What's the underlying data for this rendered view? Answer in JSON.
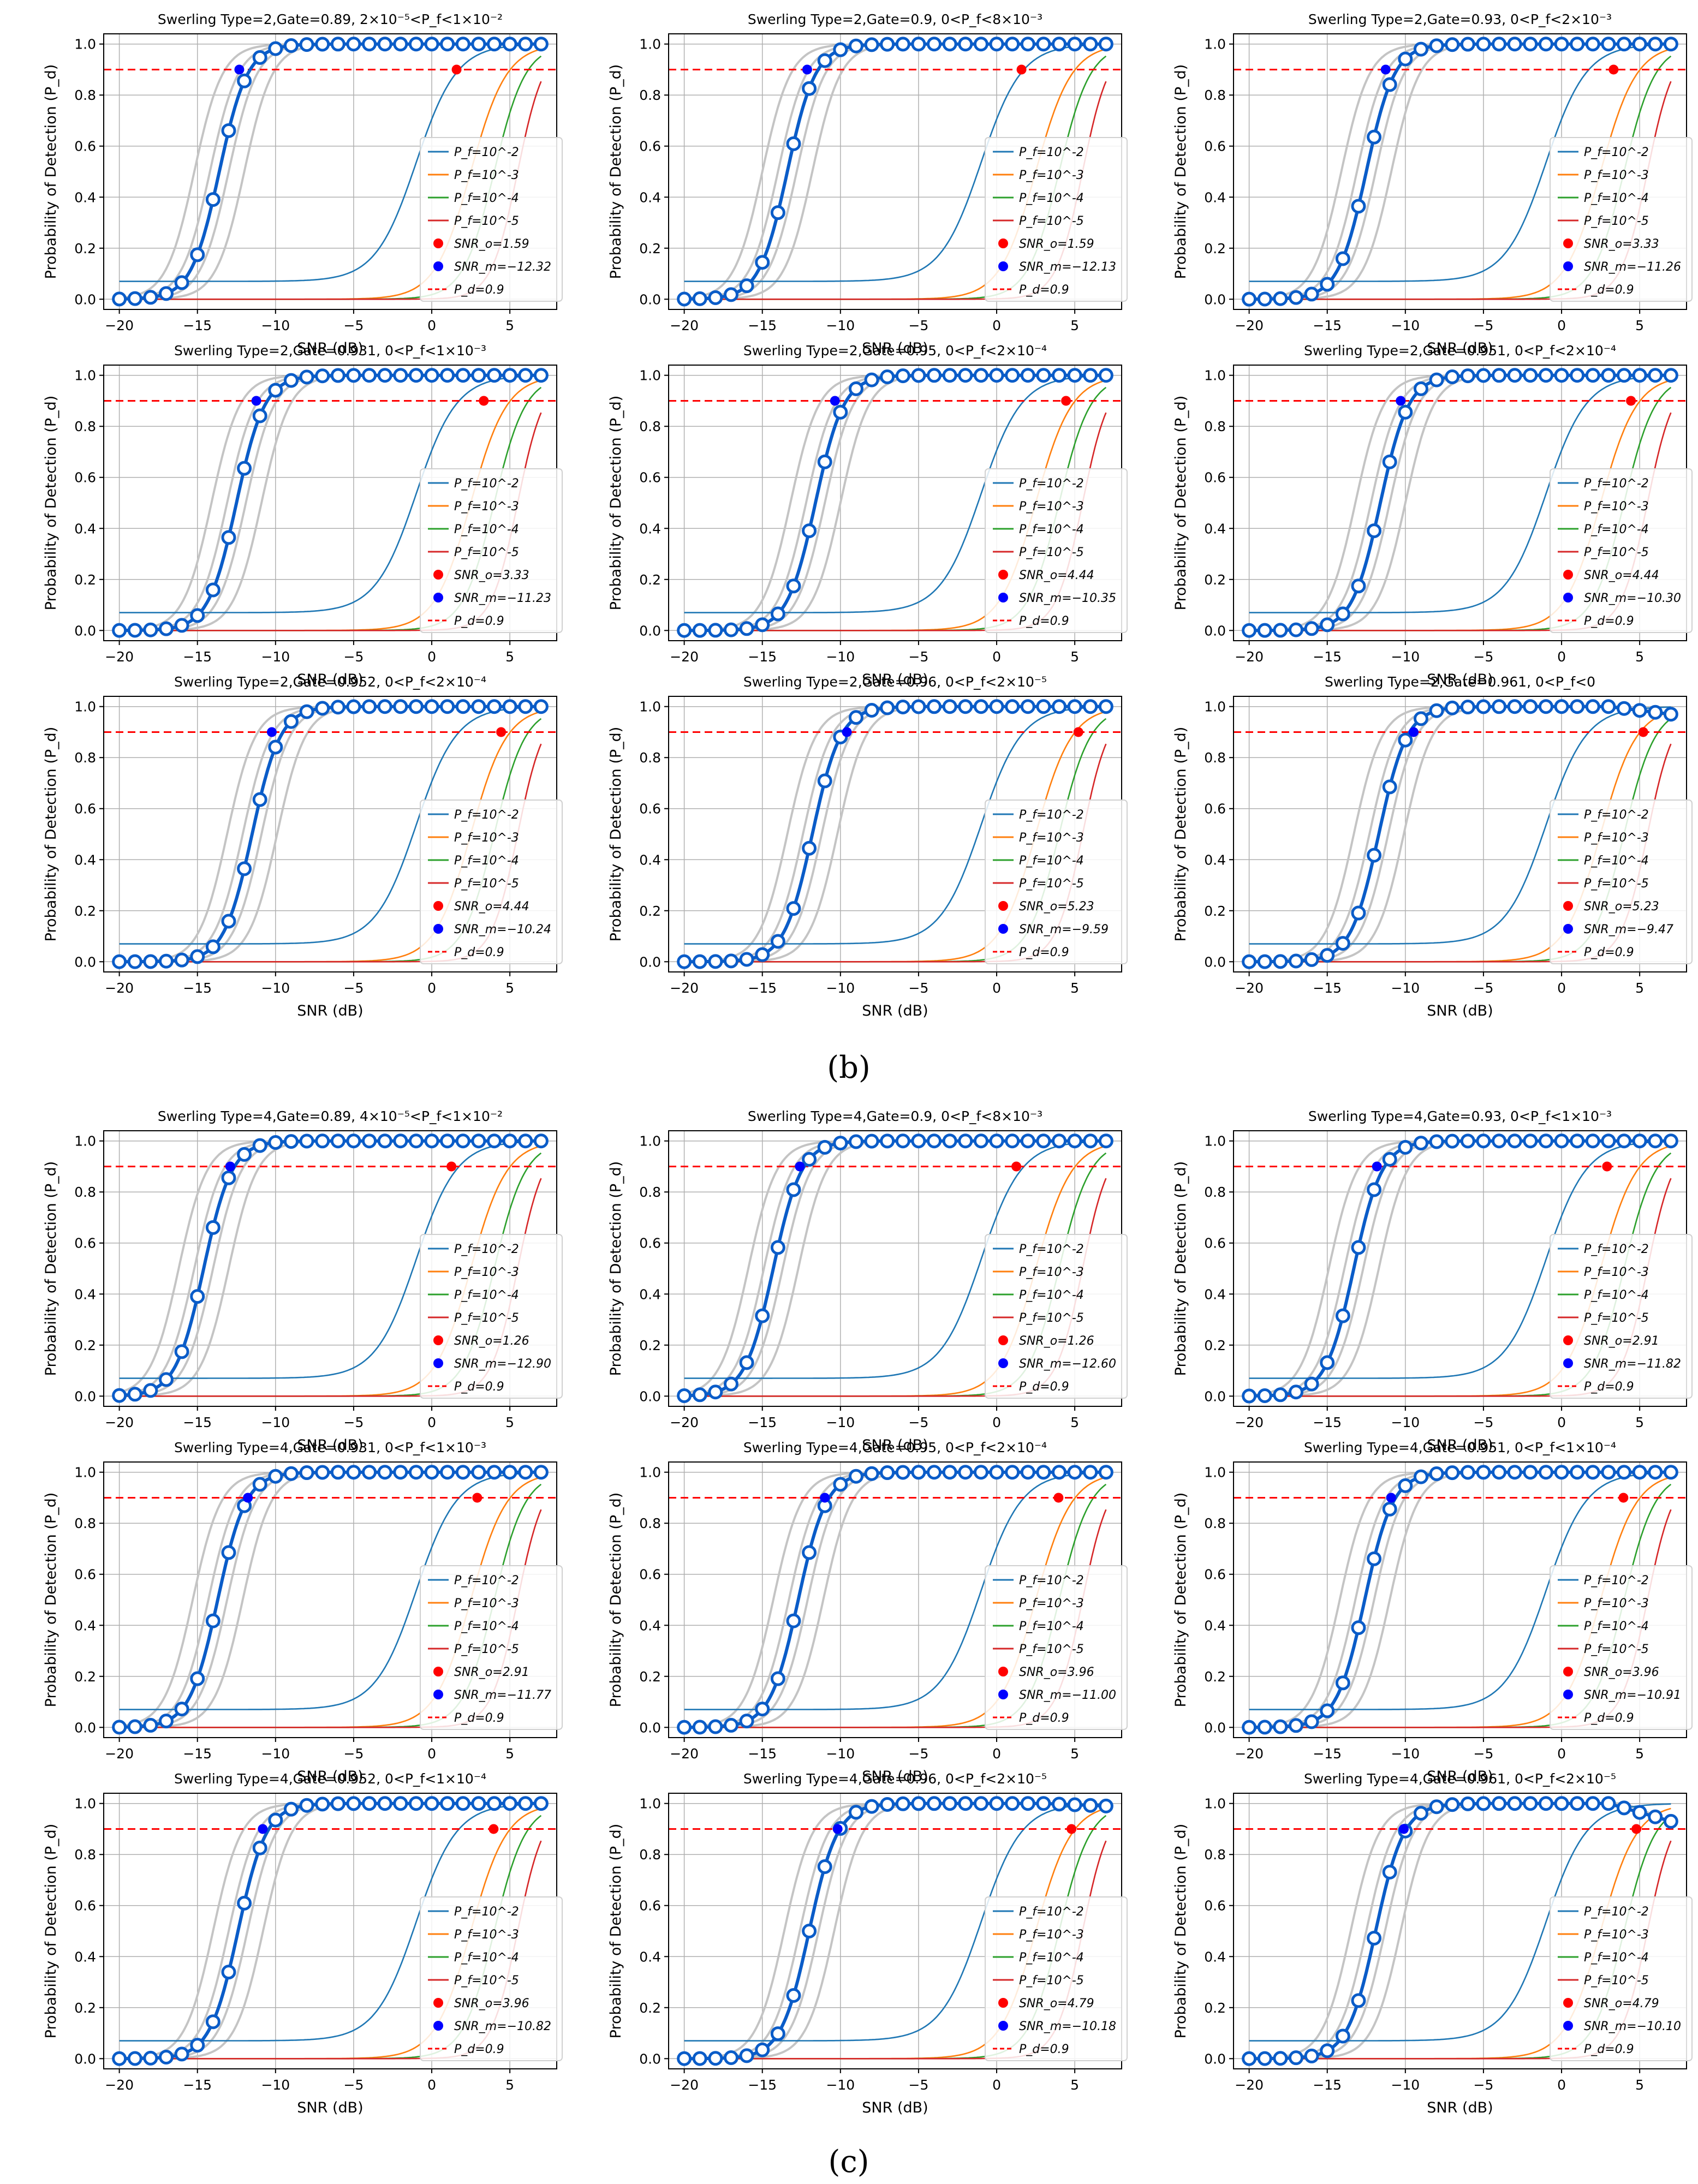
{
  "figure": {
    "captions": [
      "(b)",
      "(c)"
    ]
  },
  "colors": {
    "p1": "#1f77b4",
    "p2": "#ff7f0e",
    "p3": "#2ca02c",
    "p4": "#d62728",
    "ideal": "#c4c4c4",
    "measured": "#0a5cc8",
    "threshold": "#ff0000",
    "snr_o": "#ff0000",
    "snr_m": "#0000ff"
  },
  "common": {
    "xlabel": "SNR (dB)",
    "ylabel": "Probability of Detection (P_d)",
    "xlim": [
      -21,
      8
    ],
    "ylim": [
      -0.04,
      1.04
    ],
    "xticks": [
      -20,
      -15,
      -10,
      -5,
      0,
      5
    ],
    "yticks": [
      0.0,
      0.2,
      0.4,
      0.6,
      0.8,
      1.0
    ],
    "ytick_labels": [
      "0.0",
      "0.2",
      "0.4",
      "0.6",
      "0.8",
      "1.0"
    ],
    "pd_threshold": 0.9,
    "legend_pf": [
      "P_f=10^-2",
      "P_f=10^-3",
      "P_f=10^-4",
      "P_f=10^-5"
    ],
    "legend_pd": "P_d=0.9",
    "snr_o_prefix": "SNR_o=",
    "snr_m_prefix": "SNR_m="
  },
  "chart_data": [
    {
      "type": "line",
      "group": "b",
      "title": "Swerling Type=2,Gate=0.89, 2×10⁻⁵<P_f<1×10⁻²",
      "snr_o": 1.59,
      "snr_m": -12.32,
      "x_center": -13.6,
      "pf_centers": [
        -1.0,
        2.5,
        4.0,
        5.5
      ],
      "droop": 0
    },
    {
      "type": "line",
      "group": "b",
      "title": "Swerling Type=2,Gate=0.9, 0<P_f<8×10⁻³",
      "snr_o": 1.59,
      "snr_m": -12.13,
      "x_center": -13.4,
      "pf_centers": [
        -1.0,
        2.5,
        4.0,
        5.5
      ],
      "droop": 0
    },
    {
      "type": "line",
      "group": "b",
      "title": "Swerling Type=2,Gate=0.93, 0<P_f<2×10⁻³",
      "snr_o": 3.33,
      "snr_m": -11.26,
      "x_center": -12.5,
      "pf_centers": [
        -1.0,
        2.5,
        4.0,
        5.5
      ],
      "droop": 0
    },
    {
      "type": "line",
      "group": "b",
      "title": "Swerling Type=2,Gate=0.931, 0<P_f<1×10⁻³",
      "snr_o": 3.33,
      "snr_m": -11.23,
      "x_center": -12.5,
      "pf_centers": [
        -1.0,
        2.5,
        4.0,
        5.5
      ],
      "droop": 0
    },
    {
      "type": "line",
      "group": "b",
      "title": "Swerling Type=2,Gate=0.95, 0<P_f<2×10⁻⁴",
      "snr_o": 4.44,
      "snr_m": -10.35,
      "x_center": -11.6,
      "pf_centers": [
        -1.0,
        2.5,
        4.0,
        5.5
      ],
      "droop": 0
    },
    {
      "type": "line",
      "group": "b",
      "title": "Swerling Type=2,Gate=0.951, 0<P_f<2×10⁻⁴",
      "snr_o": 4.44,
      "snr_m": -10.3,
      "x_center": -11.6,
      "pf_centers": [
        -1.0,
        2.5,
        4.0,
        5.5
      ],
      "droop": 0
    },
    {
      "type": "line",
      "group": "b",
      "title": "Swerling Type=2,Gate=0.952, 0<P_f<2×10⁻⁴",
      "snr_o": 4.44,
      "snr_m": -10.24,
      "x_center": -11.5,
      "pf_centers": [
        -1.0,
        2.5,
        4.0,
        5.5
      ],
      "droop": 0
    },
    {
      "type": "line",
      "group": "b",
      "title": "Swerling Type=2,Gate=0.96, 0<P_f<2×10⁻⁵",
      "snr_o": 5.23,
      "snr_m": -9.59,
      "x_center": -11.8,
      "pf_centers": [
        -1.0,
        2.5,
        4.0,
        5.5
      ],
      "droop": 0
    },
    {
      "type": "line",
      "group": "b",
      "title": "Swerling Type=2,Gate=0.961, 0<P_f<0",
      "snr_o": 5.23,
      "snr_m": -9.47,
      "x_center": -11.7,
      "pf_centers": [
        -1.0,
        2.5,
        4.0,
        5.5
      ],
      "droop": 0.03
    },
    {
      "type": "line",
      "group": "c",
      "title": "Swerling Type=4,Gate=0.89, 4×10⁻⁵<P_f<1×10⁻²",
      "snr_o": 1.26,
      "snr_m": -12.9,
      "x_center": -14.6,
      "pf_centers": [
        -1.0,
        2.5,
        4.0,
        5.5
      ],
      "droop": 0
    },
    {
      "type": "line",
      "group": "c",
      "title": "Swerling Type=4,Gate=0.9, 0<P_f<8×10⁻³",
      "snr_o": 1.26,
      "snr_m": -12.6,
      "x_center": -14.3,
      "pf_centers": [
        -1.0,
        2.5,
        4.0,
        5.5
      ],
      "droop": 0
    },
    {
      "type": "line",
      "group": "c",
      "title": "Swerling Type=4,Gate=0.93, 0<P_f<1×10⁻³",
      "snr_o": 2.91,
      "snr_m": -11.82,
      "x_center": -13.3,
      "pf_centers": [
        -1.0,
        2.5,
        4.0,
        5.5
      ],
      "droop": 0
    },
    {
      "type": "line",
      "group": "c",
      "title": "Swerling Type=4,Gate=0.931, 0<P_f<1×10⁻³",
      "snr_o": 2.91,
      "snr_m": -11.77,
      "x_center": -13.7,
      "pf_centers": [
        -1.0,
        2.5,
        4.0,
        5.5
      ],
      "droop": 0
    },
    {
      "type": "line",
      "group": "c",
      "title": "Swerling Type=4,Gate=0.95, 0<P_f<2×10⁻⁴",
      "snr_o": 3.96,
      "snr_m": -11.0,
      "x_center": -12.7,
      "pf_centers": [
        -1.0,
        2.5,
        4.0,
        5.5
      ],
      "droop": 0
    },
    {
      "type": "line",
      "group": "c",
      "title": "Swerling Type=4,Gate=0.951, 0<P_f<1×10⁻⁴",
      "snr_o": 3.96,
      "snr_m": -10.91,
      "x_center": -12.6,
      "pf_centers": [
        -1.0,
        2.5,
        4.0,
        5.5
      ],
      "droop": 0
    },
    {
      "type": "line",
      "group": "c",
      "title": "Swerling Type=4,Gate=0.952, 0<P_f<1×10⁻⁴",
      "snr_o": 3.96,
      "snr_m": -10.82,
      "x_center": -12.4,
      "pf_centers": [
        -1.0,
        2.5,
        4.0,
        5.5
      ],
      "droop": 0
    },
    {
      "type": "line",
      "group": "c",
      "title": "Swerling Type=4,Gate=0.96, 0<P_f<2×10⁻⁵",
      "snr_o": 4.79,
      "snr_m": -10.18,
      "x_center": -12.0,
      "pf_centers": [
        -1.0,
        2.5,
        4.0,
        5.5
      ],
      "droop": 0.01
    },
    {
      "type": "line",
      "group": "c",
      "title": "Swerling Type=4,Gate=0.961, 0<P_f<2×10⁻⁵",
      "snr_o": 4.79,
      "snr_m": -10.1,
      "x_center": -11.9,
      "pf_centers": [
        -1.0,
        2.5,
        4.0,
        5.5
      ],
      "droop": 0.07
    }
  ]
}
